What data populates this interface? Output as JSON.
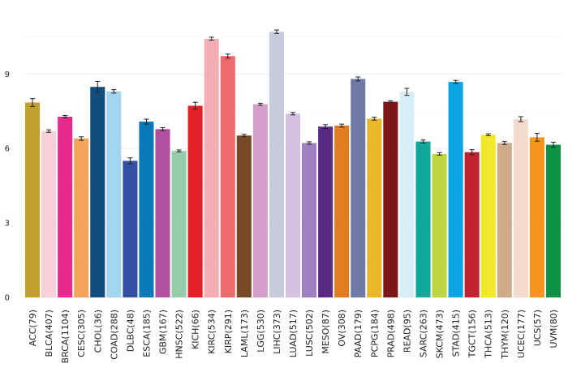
{
  "chart_data": {
    "type": "bar",
    "title": "",
    "xlabel": "",
    "ylabel": "",
    "ylim": [
      0,
      11
    ],
    "yticks": [
      0,
      3,
      6,
      9
    ],
    "grid": true,
    "categories": [
      "ACC(79)",
      "BLCA(407)",
      "BRCA(1104)",
      "CESC(305)",
      "CHOL(36)",
      "COAD(288)",
      "DLBC(48)",
      "ESCA(185)",
      "GBM(167)",
      "HNSC(522)",
      "KICH(66)",
      "KIRC(534)",
      "KIRP(291)",
      "LAML(173)",
      "LGG(530)",
      "LIHC(373)",
      "LUAD(517)",
      "LUSC(502)",
      "MESO(87)",
      "OV(308)",
      "PAAD(179)",
      "PCPG(184)",
      "PRAD(498)",
      "READ(95)",
      "SARC(263)",
      "SKCM(473)",
      "STAD(415)",
      "TGCT(156)",
      "THCA(513)",
      "THYM(120)",
      "UCEC(177)",
      "UCS(57)",
      "UVM(80)"
    ],
    "values": [
      7.85,
      6.7,
      7.28,
      6.4,
      8.48,
      8.3,
      5.5,
      7.08,
      6.78,
      5.9,
      7.72,
      10.42,
      9.72,
      6.52,
      7.78,
      10.7,
      7.4,
      6.22,
      6.88,
      6.92,
      8.8,
      7.2,
      7.88,
      8.28,
      6.28,
      5.78,
      8.68,
      5.85,
      6.55,
      6.22,
      7.18,
      6.45,
      6.15
    ],
    "errors": [
      0.16,
      0.05,
      0.05,
      0.07,
      0.22,
      0.07,
      0.12,
      0.1,
      0.06,
      0.04,
      0.14,
      0.06,
      0.08,
      0.05,
      0.04,
      0.07,
      0.05,
      0.05,
      0.08,
      0.06,
      0.08,
      0.06,
      0.04,
      0.14,
      0.06,
      0.05,
      0.06,
      0.1,
      0.04,
      0.06,
      0.1,
      0.16,
      0.1
    ],
    "colors": [
      "#c1a030",
      "#f9d0da",
      "#e8298d",
      "#f5a55a",
      "#124d80",
      "#a2d5f0",
      "#3350a3",
      "#0a79b8",
      "#b24f9e",
      "#95ccaa",
      "#e42127",
      "#f4adb2",
      "#ed6a6e",
      "#774a26",
      "#d49fc8",
      "#c8cbdb",
      "#d5c0e0",
      "#9e7fbf",
      "#5a2a85",
      "#e07d20",
      "#6f7ba6",
      "#e8b82a",
      "#7d1616",
      "#d7eef9",
      "#10a89a",
      "#bcd642",
      "#0aa4e2",
      "#c0232f",
      "#f3e827",
      "#cfaa89",
      "#f4dbcd",
      "#f7941d",
      "#0b9247"
    ]
  }
}
